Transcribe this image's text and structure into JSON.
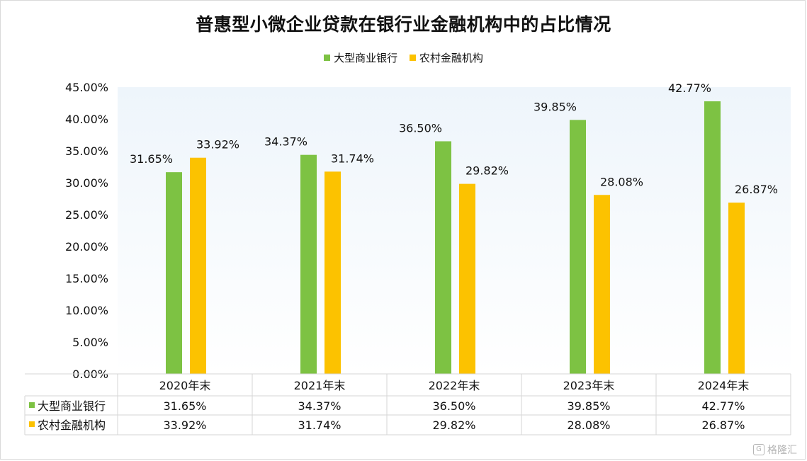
{
  "chart_data": {
    "type": "bar",
    "title": "普惠型小微企业贷款在银行业金融机构中的占比情况",
    "categories": [
      "2020年末",
      "2021年末",
      "2022年末",
      "2023年末",
      "2024年末"
    ],
    "series": [
      {
        "name": "大型商业银行",
        "values": [
          31.65,
          34.37,
          36.5,
          39.85,
          42.77
        ],
        "labels": [
          "31.65%",
          "34.37%",
          "36.50%",
          "39.85%",
          "42.77%"
        ],
        "color": "#7dc243"
      },
      {
        "name": "农村金融机构",
        "values": [
          33.92,
          31.74,
          29.82,
          28.08,
          26.87
        ],
        "labels": [
          "33.92%",
          "31.74%",
          "29.82%",
          "28.08%",
          "26.87%"
        ],
        "color": "#fcc200"
      }
    ],
    "yticks": [
      "0.00%",
      "5.00%",
      "10.00%",
      "15.00%",
      "20.00%",
      "25.00%",
      "30.00%",
      "35.00%",
      "40.00%",
      "45.00%"
    ],
    "ylim": [
      0,
      45
    ],
    "legend": "top",
    "data_table": true
  },
  "watermark": "格隆汇"
}
